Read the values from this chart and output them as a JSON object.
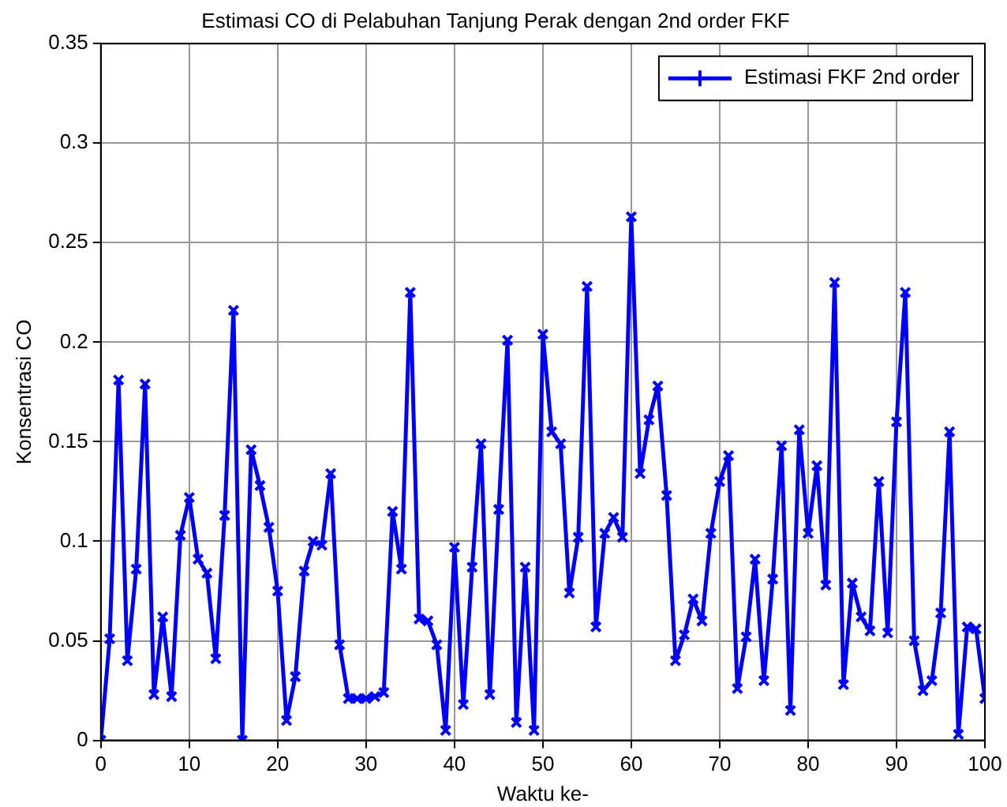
{
  "chart_data": {
    "type": "line",
    "title": "Estimasi CO di Pelabuhan Tanjung Perak dengan 2nd order FKF",
    "xlabel": "Waktu ke-",
    "ylabel": "Konsentrasi CO",
    "x": [
      0,
      1,
      2,
      3,
      4,
      5,
      6,
      7,
      8,
      9,
      10,
      11,
      12,
      13,
      14,
      15,
      16,
      17,
      18,
      19,
      20,
      21,
      22,
      23,
      24,
      25,
      26,
      27,
      28,
      29,
      30,
      31,
      32,
      33,
      34,
      35,
      36,
      37,
      38,
      39,
      40,
      41,
      42,
      43,
      44,
      45,
      46,
      47,
      48,
      49,
      50,
      51,
      52,
      53,
      54,
      55,
      56,
      57,
      58,
      59,
      60,
      61,
      62,
      63,
      64,
      65,
      66,
      67,
      68,
      69,
      70,
      71,
      72,
      73,
      74,
      75,
      76,
      77,
      78,
      79,
      80,
      81,
      82,
      83,
      84,
      85,
      86,
      87,
      88,
      89,
      90,
      91,
      92,
      93,
      94,
      95,
      96,
      97,
      98,
      99,
      100
    ],
    "series": [
      {
        "name": "Estimasi FKF 2nd order",
        "color": "#0000ff",
        "values": [
          0,
          0.051,
          0.181,
          0.04,
          0.086,
          0.179,
          0.023,
          0.062,
          0.022,
          0.103,
          0.122,
          0.091,
          0.084,
          0.041,
          0.113,
          0.216,
          0,
          0.146,
          0.128,
          0.107,
          0.075,
          0.01,
          0.032,
          0.085,
          0.1,
          0.098,
          0.134,
          0.048,
          0.021,
          0.021,
          0.021,
          0.022,
          0.024,
          0.115,
          0.086,
          0.225,
          0.061,
          0.06,
          0.048,
          0.005,
          0.097,
          0.018,
          0.087,
          0.149,
          0.023,
          0.116,
          0.201,
          0.009,
          0.087,
          0.005,
          0.204,
          0.155,
          0.149,
          0.074,
          0.102,
          0.228,
          0.057,
          0.104,
          0.112,
          0.102,
          0.263,
          0.134,
          0.161,
          0.178,
          0.123,
          0.04,
          0.053,
          0.071,
          0.06,
          0.104,
          0.13,
          0.143,
          0.026,
          0.052,
          0.091,
          0.03,
          0.081,
          0.148,
          0.015,
          0.156,
          0.104,
          0.138,
          0.078,
          0.23,
          0.028,
          0.079,
          0.062,
          0.055,
          0.13,
          0.054,
          0.16,
          0.225,
          0.05,
          0.025,
          0.03,
          0.064,
          0.155,
          0.003,
          0.057,
          0.056,
          0.021
        ]
      }
    ],
    "xlim": [
      0,
      100
    ],
    "xticks": [
      0,
      10,
      20,
      30,
      40,
      50,
      60,
      70,
      80,
      90,
      100
    ],
    "ylim": [
      0,
      0.35
    ],
    "yticks": [
      0,
      0.05,
      0.1,
      0.15,
      0.2,
      0.25,
      0.3,
      0.35
    ],
    "grid": true,
    "legend": "top right",
    "marker": "cross",
    "line_style": "solid"
  }
}
